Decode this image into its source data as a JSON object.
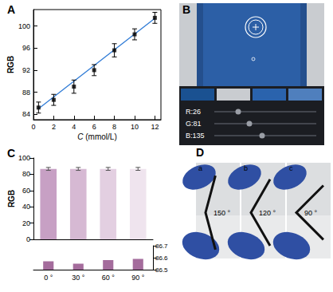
{
  "chart_data": [
    {
      "type": "scatter",
      "title": "A",
      "xlabel": "C (mmol/L)",
      "ylabel": "RGB",
      "series": [
        {
          "type": "scatter",
          "color": "#000000",
          "marker": "square",
          "x": [
            0.5,
            2,
            4,
            6,
            8,
            10,
            12
          ],
          "values": [
            85.2,
            86.6,
            89.0,
            92.0,
            95.6,
            98.5,
            101.5
          ],
          "errors": [
            1.0,
            1.0,
            1.2,
            1.0,
            1.2,
            1.0,
            1.0
          ]
        },
        {
          "type": "line",
          "color": "#2f7bd6",
          "line_style": "solid",
          "x": [
            0.5,
            12
          ],
          "values": [
            85.0,
            101.4
          ]
        }
      ],
      "xlim": [
        0,
        12.6
      ],
      "xticks": [
        0,
        2,
        4,
        6,
        8,
        10,
        12
      ],
      "ylim": [
        83,
        103
      ],
      "yticks": [
        84,
        88,
        92,
        96,
        100
      ],
      "grid": false
    },
    {
      "type": "bar",
      "title": "C",
      "ylabel": "RGB",
      "categories": [
        "0 °",
        "30 °",
        "60 °",
        "90 °"
      ],
      "values": [
        86.57,
        86.55,
        86.58,
        86.59
      ],
      "errors": [
        1.8,
        1.8,
        1.8,
        1.8
      ],
      "colors": [
        "#c7a0c4",
        "#d6b9d3",
        "#e3cfe1",
        "#efe4ee"
      ],
      "ylim": [
        0,
        100
      ],
      "yticks": [
        0,
        20,
        40,
        60,
        80,
        100
      ],
      "tick_labels": "y"
    },
    {
      "type": "bar",
      "categories": [
        "0 °",
        "30 °",
        "60 °",
        "90 °"
      ],
      "values": [
        86.57,
        86.55,
        86.58,
        86.59
      ],
      "color": "#a46c9c",
      "ylim": [
        86.5,
        86.7
      ],
      "yticks": [
        86.5,
        86.6,
        86.7
      ]
    }
  ],
  "panels": {
    "B": {
      "label": "B",
      "readout": [
        "R:26",
        "G:81",
        "B:135"
      ]
    },
    "D": {
      "label": "D",
      "photos": [
        {
          "label": "a",
          "angle": 150,
          "angle_label": "150 °"
        },
        {
          "label": "b",
          "angle": 120,
          "angle_label": "120 °"
        },
        {
          "label": "c",
          "angle": 90,
          "angle_label": "90 °"
        }
      ]
    }
  }
}
